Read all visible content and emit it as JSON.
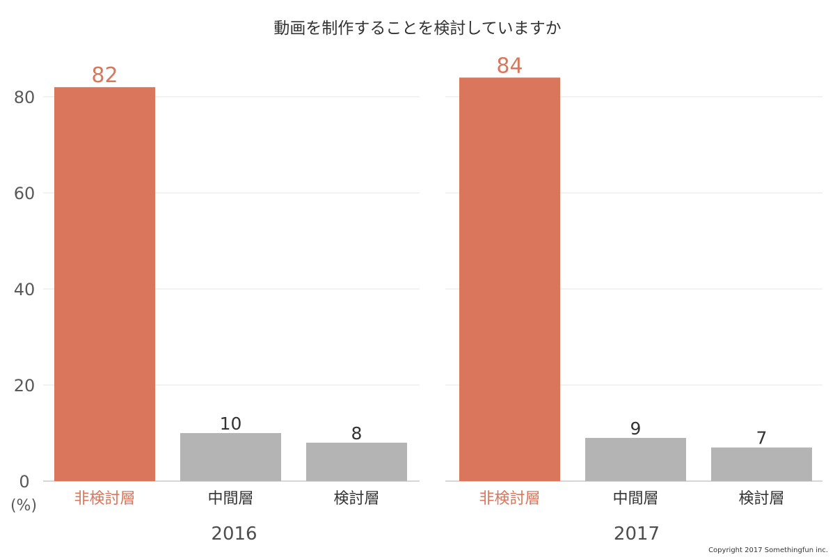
{
  "chart_data": {
    "type": "bar",
    "title": "動画を制作することを検討していますか",
    "y_unit": "(%)",
    "ylim": [
      0,
      90
    ],
    "yticks": [
      0,
      20,
      40,
      60,
      80
    ],
    "grid": true,
    "categories": [
      "非検討層",
      "中間層",
      "検討層"
    ],
    "panels": [
      {
        "label": "2016",
        "values": [
          82,
          10,
          8
        ]
      },
      {
        "label": "2017",
        "values": [
          84,
          9,
          7
        ]
      }
    ],
    "colors": {
      "highlight": "#d9765b",
      "default": "#b4b4b4",
      "axis_text": "#595959",
      "value_text": "#333333",
      "grid": "#e6e6e6",
      "baseline": "#bdbdbd"
    },
    "copyright": "Copyright 2017 Somethingfun inc."
  }
}
